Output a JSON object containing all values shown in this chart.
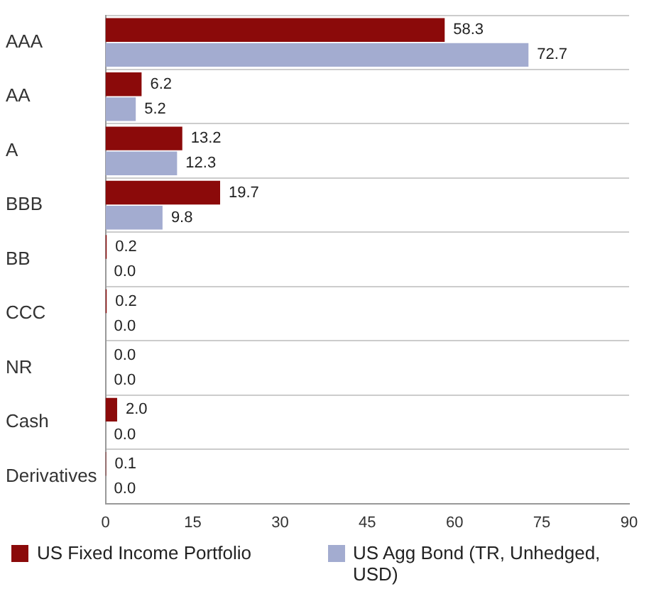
{
  "chart_data": {
    "type": "bar",
    "orientation": "horizontal",
    "categories": [
      "AAA",
      "AA",
      "A",
      "BBB",
      "BB",
      "CCC",
      "NR",
      "Cash",
      "Derivatives"
    ],
    "series": [
      {
        "name": "US Fixed Income Portfolio",
        "color": "#8b0a0a",
        "values": [
          58.3,
          6.2,
          13.2,
          19.7,
          0.2,
          0.2,
          0,
          2,
          0.1
        ],
        "value_labels": [
          "58.3",
          "6.2",
          "13.2",
          "19.7",
          "0.2",
          "0.2",
          "0.0",
          "2.0",
          "0.1"
        ]
      },
      {
        "name": "US Agg Bond (TR, Unhedged, USD)",
        "color": "#a3acd0",
        "values": [
          72.7,
          5.2,
          12.3,
          9.8,
          0,
          0,
          0,
          0,
          0
        ],
        "value_labels": [
          "72.7",
          "5.2",
          "12.3",
          "9.8",
          "0.0",
          "0.0",
          "0.0",
          "0.0",
          "0.0"
        ]
      }
    ],
    "xlim": [
      0,
      90
    ],
    "xticks": [
      0,
      15,
      30,
      45,
      60,
      75,
      90
    ],
    "grid": "y",
    "legend": "bottom"
  }
}
